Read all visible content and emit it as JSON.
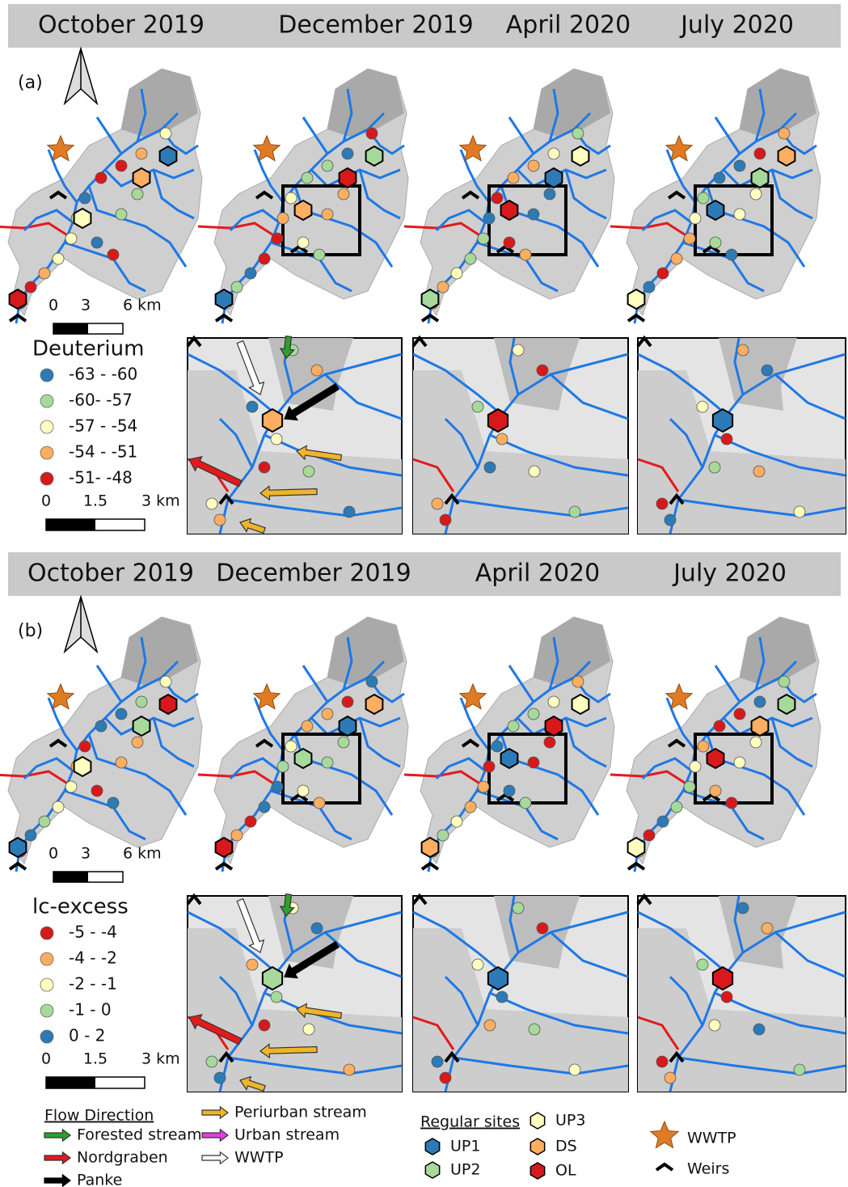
{
  "panels": [
    {
      "label": "(a)",
      "months": [
        "October 2019",
        "December 2019",
        "April 2020",
        "July 2020"
      ],
      "legend_title": "Deuterium",
      "classes": [
        {
          "label": "-63 - -60",
          "color": "#2c7bb6"
        },
        {
          "label": "-60- -57",
          "color": "#a6d99a"
        },
        {
          "label": "-57 - -54",
          "color": "#ffffbf"
        },
        {
          "label": "-54 - -51",
          "color": "#fdae61"
        },
        {
          "label": "-51- -48",
          "color": "#d7191c"
        }
      ],
      "map_scale": [
        "0",
        "3",
        "6 km"
      ],
      "inset_scale": [
        "0",
        "1.5",
        "3 km"
      ]
    },
    {
      "label": "(b)",
      "months": [
        "October 2019",
        "December 2019",
        "April 2020",
        "July 2020"
      ],
      "legend_title": "lc-excess",
      "classes": [
        {
          "label": "-5 - -4",
          "color": "#d7191c"
        },
        {
          "label": "-4 - -2",
          "color": "#fdae61"
        },
        {
          "label": "-2 - -1",
          "color": "#ffffbf"
        },
        {
          "label": "-1 - 0",
          "color": "#a6d99a"
        },
        {
          "label": "0 - 2",
          "color": "#2c7bb6"
        }
      ],
      "map_scale": [
        "0",
        "3",
        "6 km"
      ],
      "inset_scale": [
        "0",
        "1.5",
        "3 km"
      ]
    }
  ],
  "legend": {
    "flow_title": "Flow Direction",
    "flows": [
      {
        "label": "Forested stream",
        "color": "#2ca02c"
      },
      {
        "label": "Nordgraben",
        "color": "#e31a1c"
      },
      {
        "label": "Panke",
        "color": "#000000"
      },
      {
        "label": "Periurban stream",
        "color": "#f0b429"
      },
      {
        "label": "Urban stream",
        "color": "#e040e0"
      },
      {
        "label": "WWTP",
        "color": "#ffffff"
      }
    ],
    "sites_title": "Regular sites",
    "sites": [
      {
        "label": "UP1",
        "color": "#2c7bb6"
      },
      {
        "label": "UP2",
        "color": "#a6d99a"
      },
      {
        "label": "UP3",
        "color": "#ffffbf"
      },
      {
        "label": "DS",
        "color": "#fdae61"
      },
      {
        "label": "OL",
        "color": "#d7191c"
      }
    ],
    "wwtp": "WWTP",
    "weirs": "Weirs"
  }
}
